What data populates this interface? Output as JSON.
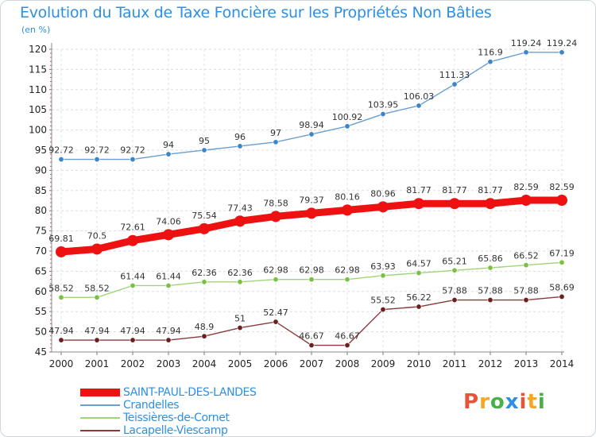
{
  "header": {
    "title": "Evolution du Taux de Taxe Foncière sur les Propriétés Non Bâties",
    "unit": "(en %)"
  },
  "logo": {
    "text": "Proxiti",
    "colors": [
      "#e8543a",
      "#f5a623",
      "#4ab04a",
      "#2f8fe0",
      "#e8543a",
      "#f5a623",
      "#4ab04a"
    ]
  },
  "chart_data": {
    "type": "line",
    "x": [
      "2000",
      "2001",
      "2002",
      "2003",
      "2004",
      "2005",
      "2006",
      "2007",
      "2008",
      "2009",
      "2010",
      "2011",
      "2012",
      "2013",
      "2014"
    ],
    "ylim": [
      45,
      120
    ],
    "yticks": [
      45,
      50,
      55,
      60,
      65,
      70,
      75,
      80,
      85,
      90,
      95,
      100,
      105,
      110,
      115,
      120
    ],
    "grid": true,
    "legend_position": "bottom-left",
    "series": [
      {
        "name": "SAINT-PAUL-DES-LANDES",
        "color": "#ee1111",
        "emphasis": true,
        "values": [
          69.81,
          70.5,
          72.61,
          74.06,
          75.54,
          77.43,
          78.58,
          79.37,
          80.16,
          80.96,
          81.77,
          81.77,
          81.77,
          82.59,
          82.59
        ],
        "labels": [
          "69.81",
          "70.5",
          "72.61",
          "74.06",
          "75.54",
          "77.43",
          "78.58",
          "79.37",
          "80.16",
          "80.96",
          "81.77",
          "81.77",
          "81.77",
          "82.59",
          "82.59"
        ]
      },
      {
        "name": "Crandelles",
        "color": "#6a9fd0",
        "point_color": "#3c86c8",
        "values": [
          92.72,
          92.72,
          92.72,
          94,
          95,
          96,
          97,
          98.94,
          100.92,
          103.95,
          106.03,
          111.33,
          116.9,
          119.24,
          119.24
        ],
        "labels": [
          "92.72",
          "92.72",
          "92.72",
          "94",
          "95",
          "96",
          "97",
          "98.94",
          "100.92",
          "103.95",
          "106.03",
          "111.33",
          "116.9",
          "119.24",
          "119.24"
        ]
      },
      {
        "name": "Teissières-de-Cornet",
        "color": "#9fd47a",
        "point_color": "#7ac143",
        "values": [
          58.52,
          58.52,
          61.44,
          61.44,
          62.36,
          62.36,
          62.98,
          62.98,
          62.98,
          63.93,
          64.57,
          65.21,
          65.86,
          66.52,
          67.19
        ],
        "labels": [
          "58.52",
          "58.52",
          "61.44",
          "61.44",
          "62.36",
          "62.36",
          "62.98",
          "62.98",
          "62.98",
          "63.93",
          "64.57",
          "65.21",
          "65.86",
          "66.52",
          "67.19"
        ]
      },
      {
        "name": "Lacapelle-Viescamp",
        "color": "#8a3a3a",
        "point_color": "#6b1f1f",
        "values": [
          47.94,
          47.94,
          47.94,
          47.94,
          48.9,
          51,
          52.47,
          46.67,
          46.67,
          55.52,
          56.22,
          57.88,
          57.88,
          57.88,
          58.69
        ],
        "labels": [
          "47.94",
          "47.94",
          "47.94",
          "47.94",
          "48.9",
          "51",
          "52.47",
          "46.67",
          "46.67",
          "55.52",
          "56.22",
          "57.88",
          "57.88",
          "57.88",
          "58.69"
        ]
      }
    ]
  }
}
